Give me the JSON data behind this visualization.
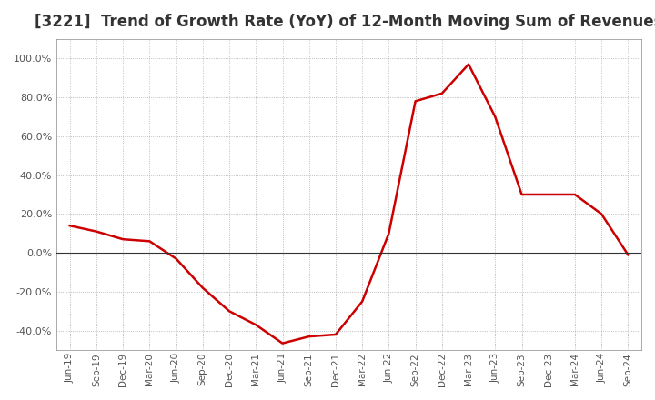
{
  "title": "[3221]  Trend of Growth Rate (YoY) of 12-Month Moving Sum of Revenues",
  "title_fontsize": 12,
  "line_color": "#cc0000",
  "background_color": "#ffffff",
  "plot_bg_color": "#ffffff",
  "grid_color": "#aaaaaa",
  "ylim": [
    -50,
    110
  ],
  "yticks": [
    -40,
    -20,
    0,
    20,
    40,
    60,
    80,
    100
  ],
  "x_labels": [
    "Jun-19",
    "Sep-19",
    "Dec-19",
    "Mar-20",
    "Jun-20",
    "Sep-20",
    "Dec-20",
    "Mar-21",
    "Jun-21",
    "Sep-21",
    "Dec-21",
    "Mar-22",
    "Jun-22",
    "Sep-22",
    "Dec-22",
    "Mar-23",
    "Jun-23",
    "Sep-23",
    "Dec-23",
    "Mar-24",
    "Jun-24",
    "Sep-24"
  ],
  "values": [
    14.0,
    11.0,
    7.0,
    6.0,
    -3.0,
    -18.0,
    -30.0,
    -37.0,
    -46.5,
    -43.0,
    -42.0,
    -25.0,
    10.0,
    78.0,
    82.0,
    97.0,
    70.0,
    30.0,
    30.0,
    30.0,
    20.0,
    -1.0
  ]
}
